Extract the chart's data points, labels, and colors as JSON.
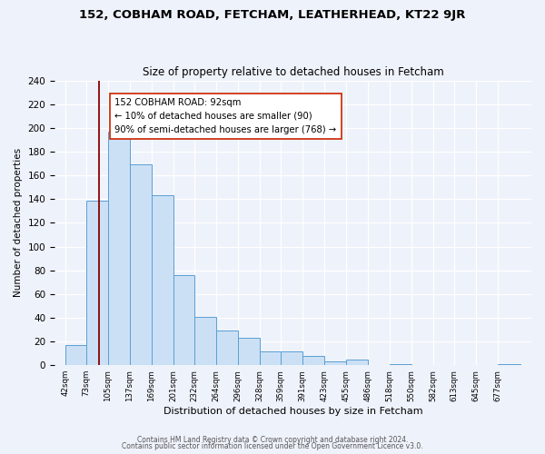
{
  "title1": "152, COBHAM ROAD, FETCHAM, LEATHERHEAD, KT22 9JR",
  "title2": "Size of property relative to detached houses in Fetcham",
  "xlabel": "Distribution of detached houses by size in Fetcham",
  "ylabel": "Number of detached properties",
  "bin_labels": [
    "42sqm",
    "73sqm",
    "105sqm",
    "137sqm",
    "169sqm",
    "201sqm",
    "232sqm",
    "264sqm",
    "296sqm",
    "328sqm",
    "359sqm",
    "391sqm",
    "423sqm",
    "455sqm",
    "486sqm",
    "518sqm",
    "550sqm",
    "582sqm",
    "613sqm",
    "645sqm",
    "677sqm"
  ],
  "bin_edges": [
    42,
    73,
    105,
    137,
    169,
    201,
    232,
    264,
    296,
    328,
    359,
    391,
    423,
    455,
    486,
    518,
    550,
    582,
    613,
    645,
    677,
    710
  ],
  "bar_heights": [
    17,
    139,
    197,
    169,
    143,
    76,
    41,
    29,
    23,
    12,
    12,
    8,
    3,
    5,
    0,
    1,
    0,
    0,
    0,
    0,
    1
  ],
  "bar_color": "#cce0f5",
  "bar_edge_color": "#5a9fd4",
  "annotation_title": "152 COBHAM ROAD: 92sqm",
  "annotation_line1": "← 10% of detached houses are smaller (90)",
  "annotation_line2": "90% of semi-detached houses are larger (768) →",
  "property_size": 92,
  "vline_color": "#8b0000",
  "ylim": [
    0,
    240
  ],
  "yticks": [
    0,
    20,
    40,
    60,
    80,
    100,
    120,
    140,
    160,
    180,
    200,
    220,
    240
  ],
  "footer1": "Contains HM Land Registry data © Crown copyright and database right 2024.",
  "footer2": "Contains public sector information licensed under the Open Government Licence v3.0.",
  "bg_color": "#eef2fa"
}
